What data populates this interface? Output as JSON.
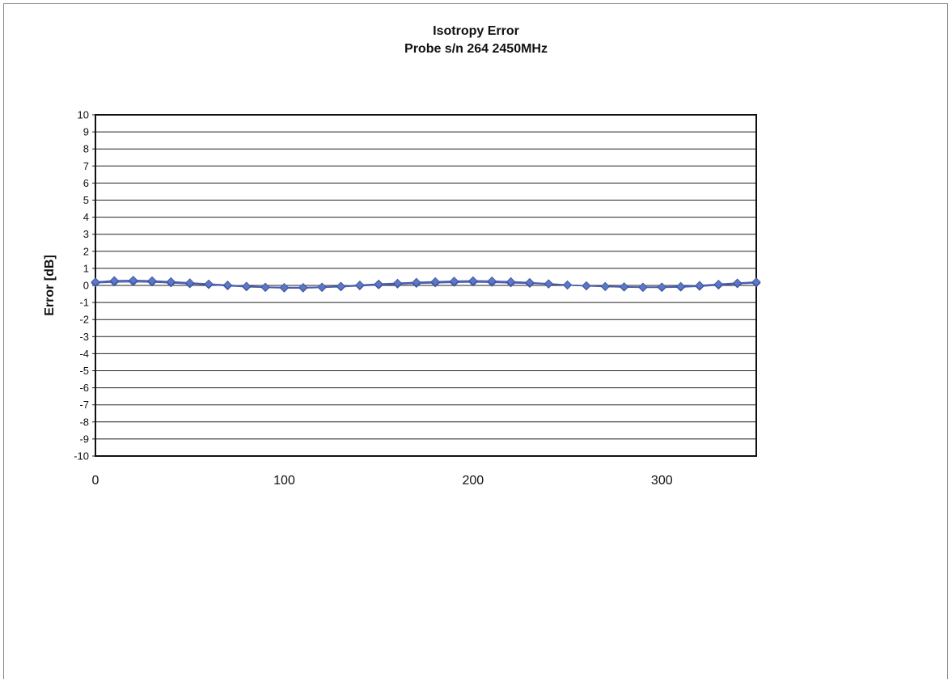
{
  "chart_data": {
    "type": "line",
    "title": "Isotropy Error",
    "subtitle": "Probe s/n 264 2450MHz",
    "xlabel": "",
    "ylabel": "Error [dB]",
    "xlim": [
      0,
      350
    ],
    "ylim": [
      -10,
      10
    ],
    "x_ticks": [
      0,
      100,
      200,
      300
    ],
    "y_ticks": [
      -10,
      -9,
      -8,
      -7,
      -6,
      -5,
      -4,
      -3,
      -2,
      -1,
      0,
      1,
      2,
      3,
      4,
      5,
      6,
      7,
      8,
      9,
      10
    ],
    "grid": true,
    "legend": "none",
    "series_color": "#4a5fb0",
    "marker_color": "#5b78c8",
    "series": [
      {
        "x": [
          0,
          10,
          20,
          30,
          40,
          50,
          60,
          70,
          80,
          90,
          100,
          110,
          120,
          130,
          140,
          150,
          160,
          170,
          180,
          190,
          200,
          210,
          220,
          230,
          240,
          250,
          260,
          270,
          280,
          290,
          300,
          310,
          320,
          330,
          340,
          350
        ],
        "values": [
          0.15,
          0.2,
          0.22,
          0.2,
          0.15,
          0.1,
          0.05,
          -0.02,
          -0.08,
          -0.12,
          -0.15,
          -0.15,
          -0.12,
          -0.08,
          -0.02,
          0.03,
          0.08,
          0.12,
          0.15,
          0.18,
          0.2,
          0.18,
          0.15,
          0.12,
          0.08,
          0.02,
          -0.03,
          -0.07,
          -0.1,
          -0.12,
          -0.12,
          -0.1,
          -0.05,
          0.02,
          0.1,
          0.15
        ]
      },
      {
        "x": [
          0,
          10,
          20,
          30,
          40,
          50,
          60,
          70,
          80,
          90,
          100,
          110,
          120,
          130,
          140,
          150,
          160,
          170,
          180,
          190,
          200,
          210,
          220,
          230,
          240,
          250,
          260,
          270,
          280,
          290,
          300,
          310,
          320,
          330,
          340,
          350
        ],
        "values": [
          0.2,
          0.28,
          0.3,
          0.27,
          0.22,
          0.15,
          0.08,
          0.02,
          -0.05,
          -0.1,
          -0.12,
          -0.12,
          -0.1,
          -0.05,
          0.02,
          0.08,
          0.13,
          0.18,
          0.22,
          0.25,
          0.27,
          0.26,
          0.22,
          0.17,
          0.1,
          0.03,
          -0.02,
          -0.06,
          -0.08,
          -0.1,
          -0.09,
          -0.06,
          0.0,
          0.07,
          0.14,
          0.2
        ]
      }
    ]
  }
}
